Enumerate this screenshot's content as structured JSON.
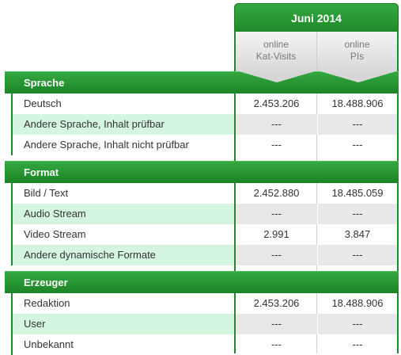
{
  "header": {
    "month": "Juni 2014",
    "columns": [
      {
        "line1": "online",
        "line2": "Kat-Visits"
      },
      {
        "line1": "online",
        "line2": "PIs"
      }
    ]
  },
  "sections": [
    {
      "title": "Sprache",
      "rows": [
        {
          "label": "Deutsch",
          "visits": "2.453.206",
          "pis": "18.488.906"
        },
        {
          "label": "Andere Sprache, Inhalt prüfbar",
          "visits": "---",
          "pis": "---"
        },
        {
          "label": "Andere Sprache, Inhalt nicht prüfbar",
          "visits": "---",
          "pis": "---"
        }
      ]
    },
    {
      "title": "Format",
      "rows": [
        {
          "label": "Bild / Text",
          "visits": "2.452.880",
          "pis": "18.485.059"
        },
        {
          "label": "Audio Stream",
          "visits": "---",
          "pis": "---"
        },
        {
          "label": "Video Stream",
          "visits": "2.991",
          "pis": "3.847"
        },
        {
          "label": "Andere dynamische Formate",
          "visits": "---",
          "pis": "---"
        }
      ]
    },
    {
      "title": "Erzeuger",
      "rows": [
        {
          "label": "Redaktion",
          "visits": "2.453.206",
          "pis": "18.488.906"
        },
        {
          "label": "User",
          "visits": "---",
          "pis": "---"
        },
        {
          "label": "Unbekannt",
          "visits": "---",
          "pis": "---"
        }
      ]
    }
  ]
}
